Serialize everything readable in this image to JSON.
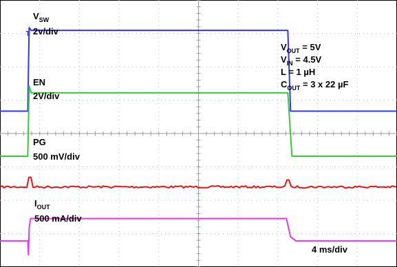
{
  "chart_data": {
    "type": "line",
    "title": "",
    "timebase": "4 ms/div",
    "divisions": {
      "x": 10,
      "y": 8
    },
    "grid": true,
    "trigger_marker": "T",
    "conditions": [
      {
        "name": "V",
        "sub": "OUT",
        "rest": " = 5V"
      },
      {
        "name": "V",
        "sub": "IN",
        "rest": " = 4.5V"
      },
      {
        "name": "L = 1 µH",
        "sub": "",
        "rest": ""
      },
      {
        "name": "C",
        "sub": "OUT",
        "rest": " = 3 x 22 µF"
      }
    ],
    "channels": [
      {
        "id": "vsw",
        "label_main": "V",
        "label_sub": "SW",
        "scale": "2v/div",
        "color": "#3333ff",
        "low_level_div": 4.67,
        "high_level_div": 7.09,
        "rise_time_div": 0.11,
        "fall_time_div": 7.25
      },
      {
        "id": "en",
        "label_main": "EN",
        "label_sub": "",
        "scale": "2V/div",
        "color": "#33cc33",
        "low_level_div": 3.32,
        "high_level_div": 5.22,
        "rise_time_div": 0.11,
        "fall_time_div": 7.25
      },
      {
        "id": "pg",
        "label_main": "PG",
        "label_sub": "",
        "scale": "500 mV/div",
        "color": "#ee1111",
        "low_level_div": 2.4,
        "high_level_div": 2.4,
        "rise_time_div": 0.11,
        "fall_time_div": 7.25
      },
      {
        "id": "iout",
        "label_main": "I",
        "label_sub": "OUT",
        "scale": "500 mA/div",
        "color": "#ee33ee",
        "low_level_div": 0.78,
        "high_level_div": 1.45,
        "rise_time_div": 0.11,
        "fall_time_div": 7.25
      }
    ]
  }
}
